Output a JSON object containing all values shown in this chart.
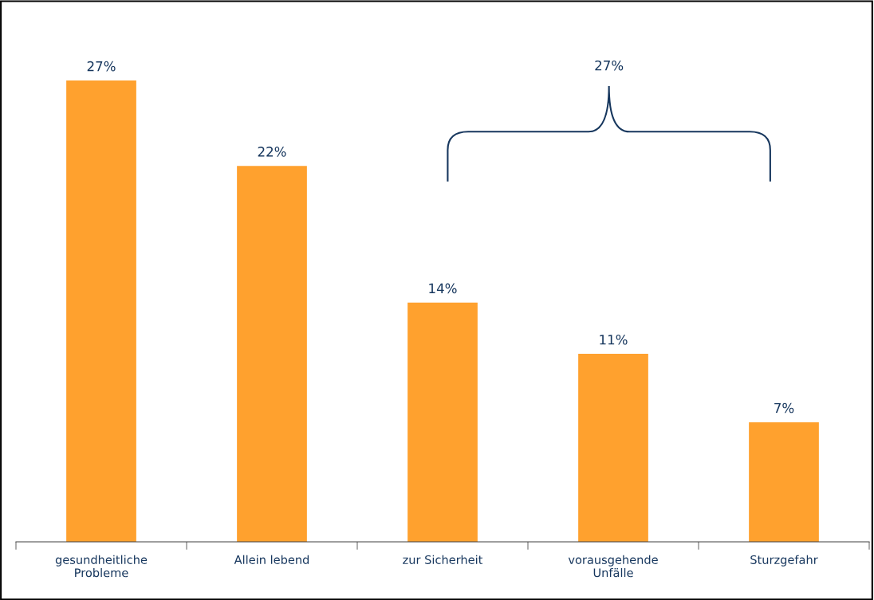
{
  "chart_data": {
    "type": "bar",
    "categories": [
      "gesundheitliche\nProbleme",
      "Allein lebend",
      "zur Sicherheit",
      "vorausgehende\nUnfälle",
      "Sturzgefahr"
    ],
    "values": [
      27,
      22,
      14,
      11,
      7
    ],
    "value_labels": [
      "27%",
      "22%",
      "14%",
      "11%",
      "7%"
    ],
    "color": "#ffa12e",
    "annotations": [
      "27%"
    ],
    "tick_labels": "x",
    "grid": false
  }
}
